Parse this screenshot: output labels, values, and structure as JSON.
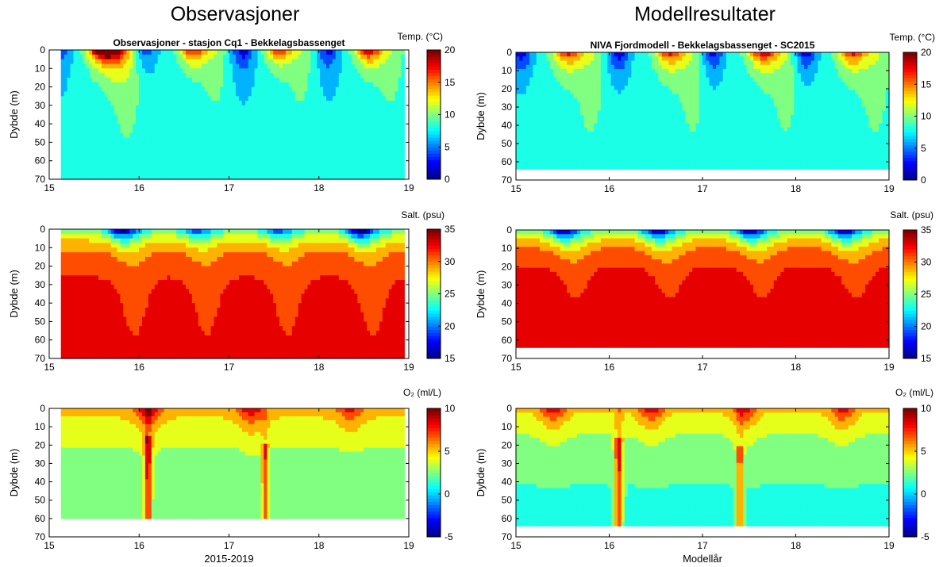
{
  "column_titles": {
    "left": "Observasjoner",
    "right": "Modellresultater"
  },
  "colors": {
    "jet": [
      "#00008f",
      "#0000ff",
      "#0080ff",
      "#00ffff",
      "#80ff80",
      "#ffff00",
      "#ff8000",
      "#ff0000",
      "#800000"
    ],
    "nodata": "#ffffff"
  },
  "chart_data": [
    {
      "id": "obs-temp",
      "type": "heatmap",
      "title": "Observasjoner - stasjon Cq1 - Bekkelagsbassenget",
      "ylabel": "Dybde (m)",
      "xlabel": "",
      "xlim": [
        15,
        19
      ],
      "xticks": [
        "15",
        "16",
        "17",
        "18",
        "19"
      ],
      "ylim": [
        0,
        70
      ],
      "yticks": [
        "0",
        "10",
        "20",
        "30",
        "40",
        "50",
        "60",
        "70"
      ],
      "y_reversed": true,
      "colorbar": {
        "label": "Temp. (°C)",
        "range": [
          0,
          20
        ],
        "ticks": [
          "0",
          "5",
          "10",
          "15",
          "20"
        ]
      },
      "data_x_range": [
        15.13,
        18.95
      ],
      "data_max_depth": 70,
      "surface_peaks": [
        [
          15.55,
          18
        ],
        [
          15.7,
          18
        ],
        [
          16.6,
          18
        ],
        [
          17.55,
          17
        ],
        [
          18.55,
          19
        ]
      ],
      "surface_troughs": [
        [
          15.1,
          3
        ],
        [
          16.05,
          2
        ],
        [
          17.15,
          1
        ],
        [
          18.1,
          2
        ]
      ],
      "deep_value": 7.5
    },
    {
      "id": "model-temp",
      "type": "heatmap",
      "title": "NIVA Fjordmodell - Bekkelagsbassenget - SC2015",
      "ylabel": "Dybde (m)",
      "xlabel": "",
      "xlim": [
        15,
        19
      ],
      "xticks": [
        "15",
        "16",
        "17",
        "18",
        "19"
      ],
      "ylim": [
        0,
        70
      ],
      "yticks": [
        "0",
        "10",
        "20",
        "30",
        "40",
        "50",
        "60",
        "70"
      ],
      "y_reversed": true,
      "colorbar": {
        "label": "Temp. (°C)",
        "range": [
          0,
          20
        ],
        "ticks": [
          "0",
          "5",
          "10",
          "15",
          "20"
        ]
      },
      "data_x_range": [
        15,
        19
      ],
      "data_max_depth": 64,
      "surface_peaks": [
        [
          15.55,
          18
        ],
        [
          16.65,
          18
        ],
        [
          17.65,
          19
        ],
        [
          18.6,
          18
        ]
      ],
      "surface_troughs": [
        [
          15.05,
          1
        ],
        [
          16.1,
          1
        ],
        [
          17.1,
          1
        ],
        [
          18.1,
          1
        ]
      ],
      "deep_value": 8
    },
    {
      "id": "obs-salt",
      "type": "heatmap",
      "title": "",
      "ylabel": "Dybde (m)",
      "xlabel": "",
      "xlim": [
        15,
        19
      ],
      "xticks": [
        "15",
        "16",
        "17",
        "18",
        "19"
      ],
      "ylim": [
        0,
        70
      ],
      "yticks": [
        "0",
        "10",
        "20",
        "30",
        "40",
        "50",
        "60",
        "70"
      ],
      "y_reversed": true,
      "colorbar": {
        "label": "Salt. (psu)",
        "range": [
          15,
          35
        ],
        "ticks": [
          "15",
          "20",
          "25",
          "30",
          "35"
        ]
      },
      "data_x_range": [
        15.13,
        18.95
      ],
      "data_max_depth": 70,
      "surface_low": [
        [
          15.8,
          17
        ],
        [
          16.6,
          22
        ],
        [
          17.5,
          22
        ],
        [
          18.45,
          16
        ]
      ],
      "deep_value": 32.5
    },
    {
      "id": "model-salt",
      "type": "heatmap",
      "title": "",
      "ylabel": "Dybde (m)",
      "xlabel": "",
      "xlim": [
        15,
        19
      ],
      "xticks": [
        "15",
        "16",
        "17",
        "18",
        "19"
      ],
      "ylim": [
        0,
        70
      ],
      "yticks": [
        "0",
        "10",
        "20",
        "30",
        "40",
        "50",
        "60",
        "70"
      ],
      "y_reversed": true,
      "colorbar": {
        "label": "Salt. (psu)",
        "range": [
          15,
          35
        ],
        "ticks": [
          "15",
          "20",
          "25",
          "30",
          "35"
        ]
      },
      "data_x_range": [
        15,
        19
      ],
      "data_max_depth": 64,
      "surface_low": [
        [
          15.5,
          18
        ],
        [
          16.5,
          18
        ],
        [
          17.5,
          18
        ],
        [
          18.5,
          18
        ]
      ],
      "deep_value": 33
    },
    {
      "id": "obs-o2",
      "type": "heatmap",
      "title": "",
      "ylabel": "Dybde (m)",
      "xlabel": "2015-2019",
      "xlim": [
        15,
        19
      ],
      "xticks": [
        "15",
        "16",
        "17",
        "18",
        "19"
      ],
      "ylim": [
        0,
        70
      ],
      "yticks": [
        "0",
        "10",
        "20",
        "30",
        "40",
        "50",
        "60",
        "70"
      ],
      "y_reversed": true,
      "colorbar": {
        "label": "O₂ (ml/L)",
        "range": [
          -5,
          10
        ],
        "ticks": [
          "-5",
          "0",
          "5",
          "10"
        ]
      },
      "data_x_range": [
        15.13,
        18.95
      ],
      "data_max_depth": 60,
      "surface_high": [
        [
          16.1,
          9
        ],
        [
          17.25,
          9
        ],
        [
          18.35,
          8
        ]
      ],
      "deep_value": 1.5
    },
    {
      "id": "model-o2",
      "type": "heatmap",
      "title": "",
      "ylabel": "Dybde (m)",
      "xlabel": "Modellår",
      "xlim": [
        15,
        19
      ],
      "xticks": [
        "15",
        "16",
        "17",
        "18",
        "19"
      ],
      "ylim": [
        0,
        70
      ],
      "yticks": [
        "0",
        "10",
        "20",
        "30",
        "40",
        "50",
        "60",
        "70"
      ],
      "y_reversed": true,
      "colorbar": {
        "label": "O₂ (ml/L)",
        "range": [
          -5,
          10
        ],
        "ticks": [
          "-5",
          "0",
          "5",
          "10"
        ]
      },
      "data_x_range": [
        15,
        19
      ],
      "data_max_depth": 64,
      "surface_high": [
        [
          15.4,
          9
        ],
        [
          16.45,
          9
        ],
        [
          17.45,
          9
        ],
        [
          18.5,
          9
        ]
      ],
      "deep_value": 1
    }
  ]
}
